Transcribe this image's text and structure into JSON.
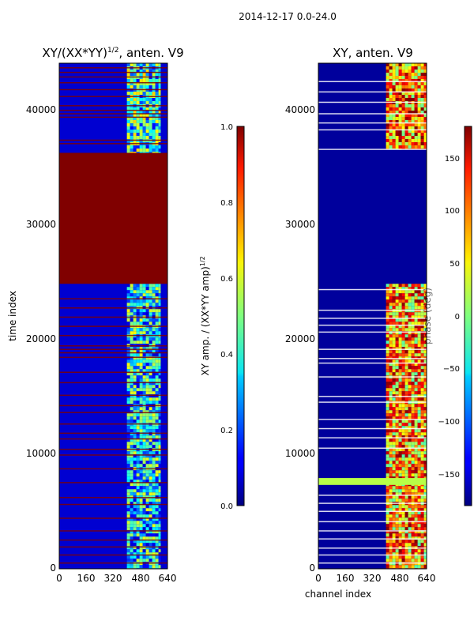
{
  "suptitle": "2014-12-17 0.0-24.0",
  "colors": {
    "jet_dark_red": "#7f0000",
    "jet_dark_blue": "#00008f",
    "axis": "#000000"
  },
  "chart_data": [
    {
      "type": "heatmap",
      "title_main": "XY/(XX*YY)",
      "title_exp": "1/2",
      "title_suffix": ", anten. V9",
      "xlabel": "",
      "ylabel": "time index",
      "xlim": [
        0,
        640
      ],
      "ylim": [
        0,
        44000
      ],
      "xticks": [
        0,
        160,
        320,
        480,
        640
      ],
      "yticks": [
        0,
        10000,
        20000,
        30000,
        40000
      ],
      "colorbar": {
        "label_main": "XY amp. / (XX*YY amp)",
        "label_exp": "1/2",
        "range": [
          0.0,
          1.0
        ],
        "ticks": [
          "0.0",
          "0.2",
          "0.4",
          "0.6",
          "0.8",
          "1.0"
        ]
      },
      "regions": [
        {
          "y": [
            0,
            44000
          ],
          "x": [
            0,
            640
          ],
          "value": 0.08,
          "note": "background low amplitude"
        },
        {
          "y": [
            0,
            24800
          ],
          "x": [
            400,
            600
          ],
          "value": 0.35,
          "note": "bright band near channels 400-600"
        },
        {
          "y": [
            24800,
            36200
          ],
          "x": [
            0,
            640
          ],
          "value": 1.0,
          "note": "saturated block"
        },
        {
          "y": [
            36200,
            44000
          ],
          "x": [
            400,
            600
          ],
          "value": 0.4,
          "note": "bright band"
        }
      ],
      "flag_rows": [
        500,
        1200,
        1900,
        2500,
        3300,
        4400,
        5600,
        6200,
        7500,
        8700,
        9900,
        10400,
        11300,
        11800,
        12600,
        13600,
        14200,
        15100,
        16200,
        17100,
        18400,
        18800,
        19100,
        19400,
        20300,
        21100,
        21900,
        22700,
        23500,
        37000,
        37300,
        39300,
        39600,
        39900,
        40300,
        41100,
        41700,
        42300,
        42800,
        43200,
        43600
      ]
    },
    {
      "type": "heatmap",
      "title_main": "XY, anten. V9",
      "xlabel": "channel index",
      "ylabel": "",
      "xlim": [
        0,
        640
      ],
      "ylim": [
        0,
        44000
      ],
      "xticks": [
        0,
        160,
        320,
        480,
        640
      ],
      "yticks": [
        0,
        10000,
        20000,
        30000,
        40000
      ],
      "colorbar": {
        "label_main": "phase (deg)",
        "range": [
          -180,
          180
        ],
        "ticks": [
          "−150",
          "−100",
          "−50",
          "0",
          "50",
          "100",
          "150"
        ]
      },
      "regions": [
        {
          "y": [
            0,
            44000
          ],
          "x": [
            0,
            640
          ],
          "value": -170,
          "note": "background phase"
        },
        {
          "y": [
            0,
            24800
          ],
          "x": [
            400,
            640
          ],
          "value": 80,
          "note": "variable phase band"
        },
        {
          "y": [
            7300,
            7900
          ],
          "x": [
            0,
            640
          ],
          "value": 20,
          "note": "uniform flagged band"
        },
        {
          "y": [
            36500,
            44000
          ],
          "x": [
            400,
            640
          ],
          "value": 90,
          "note": "variable phase band"
        }
      ],
      "flag_rows": [
        500,
        1200,
        1800,
        2600,
        3300,
        4100,
        5000,
        5700,
        6400,
        10500,
        11400,
        12200,
        13000,
        14500,
        15000,
        16700,
        17900,
        18300,
        19100,
        20600,
        21200,
        21800,
        22500,
        24300,
        36500,
        38200,
        38800,
        39600,
        40600,
        41500,
        42400
      ]
    }
  ]
}
